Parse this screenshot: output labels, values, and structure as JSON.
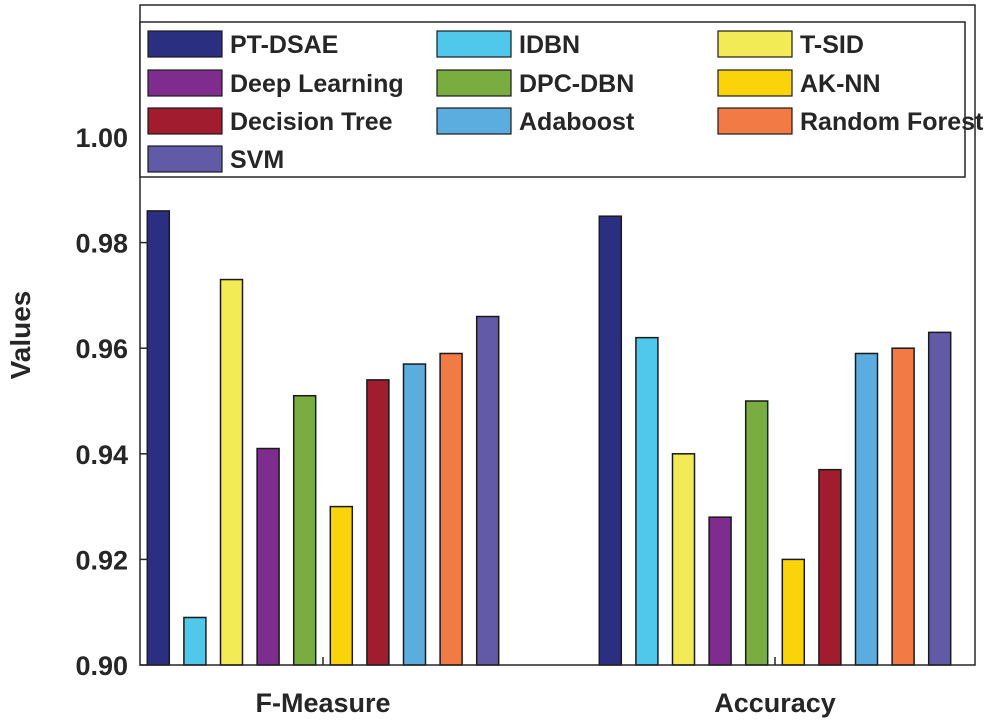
{
  "chart_data": {
    "type": "bar",
    "title": "",
    "xlabel": "",
    "ylabel": "Values",
    "ylim": [
      0.9,
      1.025
    ],
    "yticks": [
      "0.90",
      "0.92",
      "0.94",
      "0.96",
      "0.98",
      "1.00"
    ],
    "categories": [
      "F-Measure",
      "Accuracy"
    ],
    "legend_position": "top",
    "series": [
      {
        "name": "PT-DSAE",
        "color": "#2b2f82",
        "values": [
          0.986,
          0.985
        ]
      },
      {
        "name": "IDBN",
        "color": "#4fc8ec",
        "values": [
          0.909,
          0.962
        ]
      },
      {
        "name": "T-SID",
        "color": "#f2eb55",
        "values": [
          0.973,
          0.94
        ]
      },
      {
        "name": "Deep Learning",
        "color": "#7e2d8e",
        "values": [
          0.941,
          0.928
        ]
      },
      {
        "name": "DPC-DBN",
        "color": "#79ad40",
        "values": [
          0.951,
          0.95
        ]
      },
      {
        "name": "AK-NN",
        "color": "#fbd30a",
        "values": [
          0.93,
          0.92
        ]
      },
      {
        "name": "Decision Tree",
        "color": "#a21c30",
        "values": [
          0.954,
          0.937
        ]
      },
      {
        "name": "Adaboost",
        "color": "#5bacdf",
        "values": [
          0.957,
          0.959
        ]
      },
      {
        "name": "Random Forest",
        "color": "#f27a45",
        "values": [
          0.959,
          0.96
        ]
      },
      {
        "name": "SVM",
        "color": "#625aa6",
        "values": [
          0.966,
          0.963
        ]
      }
    ]
  }
}
